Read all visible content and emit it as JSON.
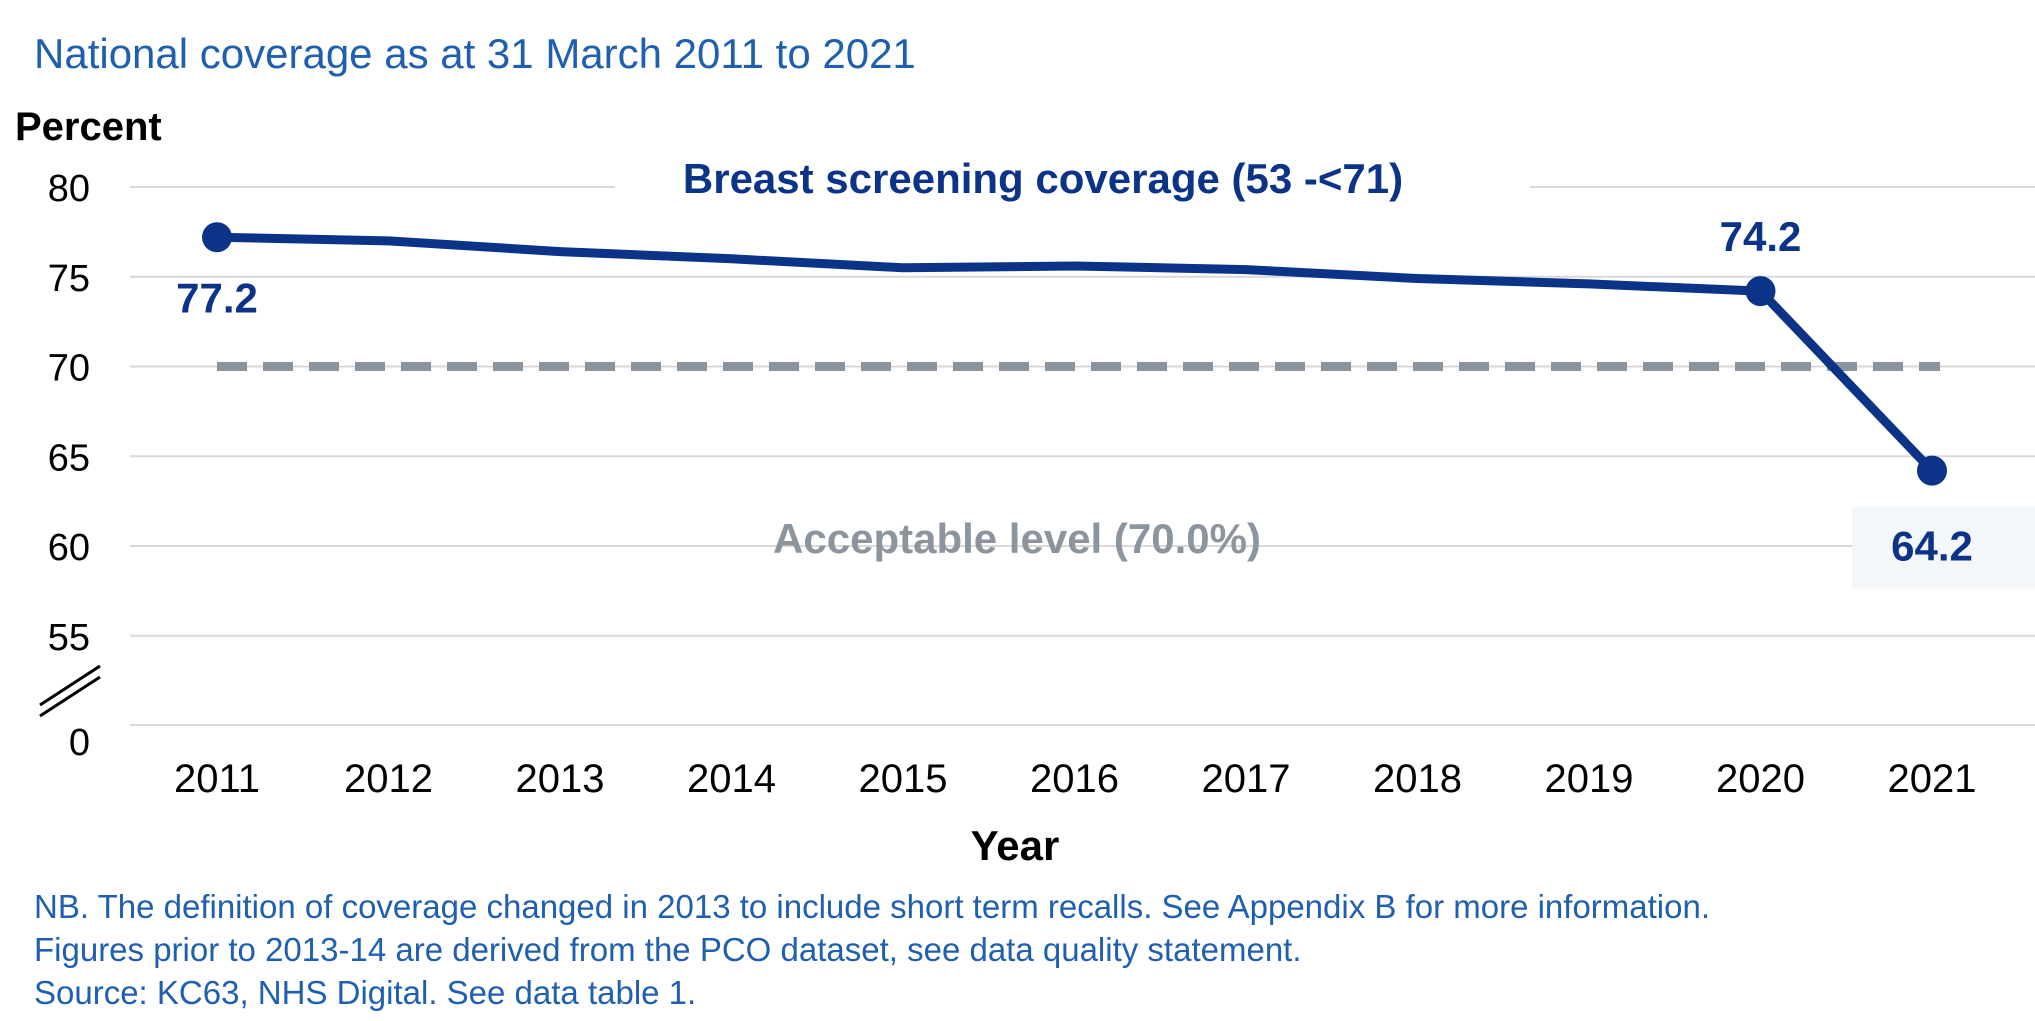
{
  "title": "National coverage as at 31 March 2011 to 2021",
  "chart_data": {
    "type": "line",
    "ylabel": "Percent",
    "xlabel": "Year",
    "categories": [
      "2011",
      "2012",
      "2013",
      "2014",
      "2015",
      "2016",
      "2017",
      "2018",
      "2019",
      "2020",
      "2021"
    ],
    "y_ticks": [
      "80",
      "75",
      "70",
      "65",
      "60",
      "55",
      "0"
    ],
    "axis_break": true,
    "grid": true,
    "series": [
      {
        "name": "Breast screening coverage (53 -<71)",
        "color": "#0b3388",
        "values": [
          77.2,
          77.0,
          76.4,
          76.0,
          75.5,
          75.6,
          75.4,
          74.9,
          74.6,
          74.2,
          64.2
        ]
      }
    ],
    "reference_line": {
      "label": "Acceptable level (70.0%)",
      "value": 70.0,
      "color": "#8c959e"
    },
    "data_labels": [
      {
        "index": 0,
        "text": "77.2"
      },
      {
        "index": 9,
        "text": "74.2"
      },
      {
        "index": 10,
        "text": "64.2"
      }
    ]
  },
  "notes": [
    "NB. The definition of coverage changed in 2013 to include short term recalls. See Appendix B for more information.",
    "Figures prior to 2013-14 are derived from the PCO dataset, see data quality statement.",
    "Source: KC63, NHS Digital. See data table 1."
  ]
}
